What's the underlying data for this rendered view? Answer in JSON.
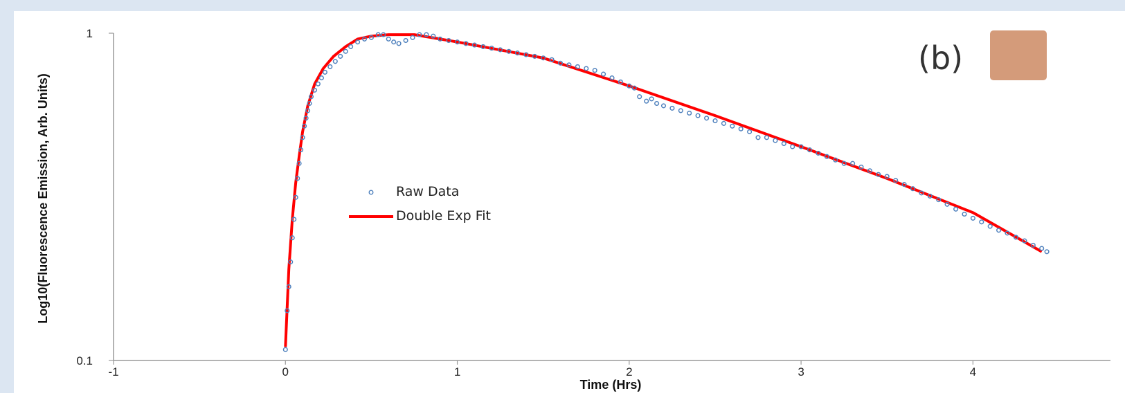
{
  "chart_data": {
    "type": "scatter",
    "panel_label": "(b)",
    "swatch_color": "#d49b7a",
    "xlabel": "Time (Hrs)",
    "ylabel": "Log10(Fluorescence Emission, Arb. Units)",
    "xlim": [
      -1,
      4.8
    ],
    "ylim": [
      0.1,
      1
    ],
    "yscale": "log",
    "x_ticks": [
      "-1",
      "0",
      "1",
      "2",
      "3",
      "4"
    ],
    "y_ticks": [
      "1",
      "0.1"
    ],
    "grid": false,
    "legend_position": "center-left",
    "series": [
      {
        "name": "Raw Data",
        "kind": "scatter",
        "color": "#4f81bd",
        "points": [
          [
            0.0,
            0.108
          ],
          [
            0.01,
            0.142
          ],
          [
            0.02,
            0.168
          ],
          [
            0.03,
            0.2
          ],
          [
            0.04,
            0.237
          ],
          [
            0.05,
            0.27
          ],
          [
            0.06,
            0.315
          ],
          [
            0.07,
            0.36
          ],
          [
            0.08,
            0.4
          ],
          [
            0.09,
            0.44
          ],
          [
            0.1,
            0.48
          ],
          [
            0.11,
            0.52
          ],
          [
            0.12,
            0.55
          ],
          [
            0.13,
            0.58
          ],
          [
            0.14,
            0.61
          ],
          [
            0.15,
            0.64
          ],
          [
            0.17,
            0.67
          ],
          [
            0.19,
            0.7
          ],
          [
            0.21,
            0.73
          ],
          [
            0.23,
            0.76
          ],
          [
            0.26,
            0.79
          ],
          [
            0.29,
            0.82
          ],
          [
            0.32,
            0.85
          ],
          [
            0.35,
            0.88
          ],
          [
            0.38,
            0.91
          ],
          [
            0.42,
            0.94
          ],
          [
            0.46,
            0.96
          ],
          [
            0.5,
            0.97
          ],
          [
            0.54,
            0.99
          ],
          [
            0.57,
            0.99
          ],
          [
            0.6,
            0.96
          ],
          [
            0.63,
            0.94
          ],
          [
            0.66,
            0.93
          ],
          [
            0.7,
            0.95
          ],
          [
            0.74,
            0.97
          ],
          [
            0.78,
            0.99
          ],
          [
            0.82,
            0.99
          ],
          [
            0.86,
            0.98
          ],
          [
            0.9,
            0.96
          ],
          [
            0.95,
            0.95
          ],
          [
            1.0,
            0.94
          ],
          [
            1.05,
            0.93
          ],
          [
            1.1,
            0.92
          ],
          [
            1.15,
            0.91
          ],
          [
            1.2,
            0.9
          ],
          [
            1.25,
            0.89
          ],
          [
            1.3,
            0.88
          ],
          [
            1.35,
            0.87
          ],
          [
            1.4,
            0.86
          ],
          [
            1.45,
            0.85
          ],
          [
            1.5,
            0.84
          ],
          [
            1.55,
            0.83
          ],
          [
            1.6,
            0.81
          ],
          [
            1.65,
            0.8
          ],
          [
            1.7,
            0.79
          ],
          [
            1.75,
            0.78
          ],
          [
            1.8,
            0.77
          ],
          [
            1.85,
            0.75
          ],
          [
            1.9,
            0.73
          ],
          [
            1.95,
            0.71
          ],
          [
            2.0,
            0.69
          ],
          [
            2.03,
            0.68
          ],
          [
            2.06,
            0.64
          ],
          [
            2.1,
            0.62
          ],
          [
            2.13,
            0.63
          ],
          [
            2.16,
            0.61
          ],
          [
            2.2,
            0.6
          ],
          [
            2.25,
            0.59
          ],
          [
            2.3,
            0.58
          ],
          [
            2.35,
            0.57
          ],
          [
            2.4,
            0.56
          ],
          [
            2.45,
            0.55
          ],
          [
            2.5,
            0.54
          ],
          [
            2.55,
            0.53
          ],
          [
            2.6,
            0.52
          ],
          [
            2.65,
            0.51
          ],
          [
            2.7,
            0.5
          ],
          [
            2.75,
            0.48
          ],
          [
            2.8,
            0.48
          ],
          [
            2.85,
            0.47
          ],
          [
            2.9,
            0.46
          ],
          [
            2.95,
            0.45
          ],
          [
            3.0,
            0.45
          ],
          [
            3.05,
            0.44
          ],
          [
            3.1,
            0.43
          ],
          [
            3.15,
            0.42
          ],
          [
            3.2,
            0.41
          ],
          [
            3.25,
            0.4
          ],
          [
            3.3,
            0.4
          ],
          [
            3.35,
            0.39
          ],
          [
            3.4,
            0.38
          ],
          [
            3.45,
            0.37
          ],
          [
            3.5,
            0.365
          ],
          [
            3.55,
            0.355
          ],
          [
            3.6,
            0.345
          ],
          [
            3.65,
            0.335
          ],
          [
            3.7,
            0.325
          ],
          [
            3.75,
            0.318
          ],
          [
            3.8,
            0.31
          ],
          [
            3.85,
            0.3
          ],
          [
            3.9,
            0.29
          ],
          [
            3.95,
            0.28
          ],
          [
            4.0,
            0.272
          ],
          [
            4.05,
            0.265
          ],
          [
            4.1,
            0.257
          ],
          [
            4.15,
            0.25
          ],
          [
            4.2,
            0.245
          ],
          [
            4.25,
            0.238
          ],
          [
            4.3,
            0.232
          ],
          [
            4.35,
            0.225
          ],
          [
            4.4,
            0.22
          ],
          [
            4.43,
            0.215
          ]
        ]
      },
      {
        "name": "Double Exp Fit",
        "kind": "line",
        "color": "#ff0000",
        "points": [
          [
            0.0,
            0.11
          ],
          [
            0.02,
            0.19
          ],
          [
            0.04,
            0.27
          ],
          [
            0.06,
            0.35
          ],
          [
            0.08,
            0.42
          ],
          [
            0.1,
            0.5
          ],
          [
            0.13,
            0.6
          ],
          [
            0.17,
            0.7
          ],
          [
            0.22,
            0.78
          ],
          [
            0.28,
            0.85
          ],
          [
            0.35,
            0.91
          ],
          [
            0.42,
            0.96
          ],
          [
            0.5,
            0.98
          ],
          [
            0.6,
            0.99
          ],
          [
            0.75,
            0.99
          ],
          [
            0.9,
            0.96
          ],
          [
            1.0,
            0.94
          ],
          [
            1.5,
            0.84
          ],
          [
            2.0,
            0.69
          ],
          [
            2.5,
            0.56
          ],
          [
            3.0,
            0.45
          ],
          [
            3.5,
            0.36
          ],
          [
            4.0,
            0.283
          ],
          [
            4.4,
            0.215
          ]
        ]
      }
    ]
  }
}
